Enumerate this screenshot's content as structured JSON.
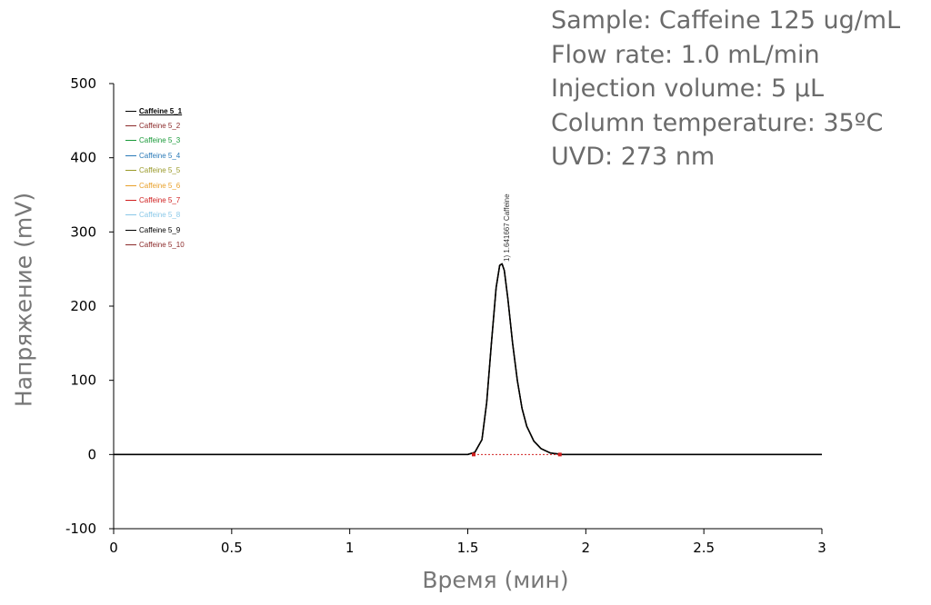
{
  "info": {
    "lines": [
      "Sample: Caffeine 125 ug/mL",
      "Flow rate: 1.0 mL/min",
      "Injection volume: 5 µL",
      "Column temperature: 35ºC",
      "UVD: 273 nm"
    ]
  },
  "peak_label": "1) 1.641667 Caffeine",
  "chart_data": {
    "type": "line",
    "title": "",
    "xlabel": "Время (мин)",
    "ylabel": "Напряжение (mV)",
    "xlim": [
      0,
      3
    ],
    "ylim": [
      -100,
      500
    ],
    "xticks": [
      0,
      0.5,
      1,
      1.5,
      2,
      2.5,
      3
    ],
    "xtick_labels": [
      "0",
      "0.5",
      "1",
      "1.5",
      "2",
      "2.5",
      "3"
    ],
    "yticks": [
      -100,
      0,
      100,
      200,
      300,
      400,
      500
    ],
    "ytick_labels": [
      "-100",
      "0",
      "100",
      "200",
      "300",
      "400",
      "500"
    ],
    "grid": false,
    "legend_position": "top-left",
    "series": [
      {
        "name": "Caffeine 5_1",
        "color": "#000000"
      },
      {
        "name": "Caffeine 5_2",
        "color": "#8b2a2a"
      },
      {
        "name": "Caffeine 5_3",
        "color": "#1a9a3a"
      },
      {
        "name": "Caffeine 5_4",
        "color": "#2a7ab8"
      },
      {
        "name": "Caffeine 5_5",
        "color": "#9a9a2a"
      },
      {
        "name": "Caffeine 5_6",
        "color": "#e8a02a"
      },
      {
        "name": "Caffeine 5_7",
        "color": "#d02020"
      },
      {
        "name": "Caffeine 5_8",
        "color": "#8ac8e8"
      },
      {
        "name": "Caffeine 5_9",
        "color": "#000000"
      },
      {
        "name": "Caffeine 5_10",
        "color": "#8b2a2a"
      }
    ],
    "trace": {
      "x": [
        0,
        1.5,
        1.53,
        1.56,
        1.58,
        1.6,
        1.62,
        1.635,
        1.645,
        1.655,
        1.67,
        1.69,
        1.71,
        1.73,
        1.75,
        1.78,
        1.81,
        1.85,
        1.9,
        2.0,
        3.0
      ],
      "y": [
        0,
        0,
        3,
        20,
        70,
        150,
        225,
        255,
        257,
        248,
        210,
        150,
        100,
        62,
        38,
        18,
        8,
        2,
        0,
        0,
        0
      ]
    },
    "peak": {
      "name": "Caffeine",
      "retention_time": 1.641667,
      "height": 257
    },
    "baseline_markers": [
      {
        "x": 1.525,
        "y": 0
      },
      {
        "x": 1.89,
        "y": 0
      }
    ]
  }
}
